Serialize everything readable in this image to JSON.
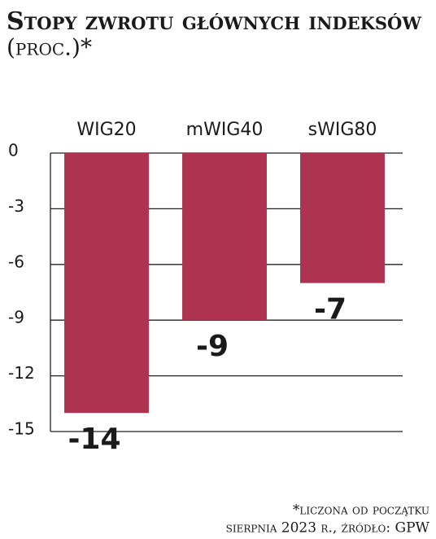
{
  "chart_data": {
    "type": "bar",
    "title": "Stopy zwrotu głównych indeksów",
    "unit_label": "(proc.)*",
    "categories": [
      "WIG20",
      "mWIG40",
      "sWIG80"
    ],
    "values": [
      -14,
      -9,
      -7
    ],
    "color": "#ae3350",
    "ylim": [
      -15,
      0
    ],
    "yticks": [
      0,
      -3,
      -6,
      -9,
      -12,
      -15
    ],
    "grid": true,
    "footnote": [
      "*liczona od początku",
      "sierpnia 2023 r., źródło: GPW"
    ]
  }
}
